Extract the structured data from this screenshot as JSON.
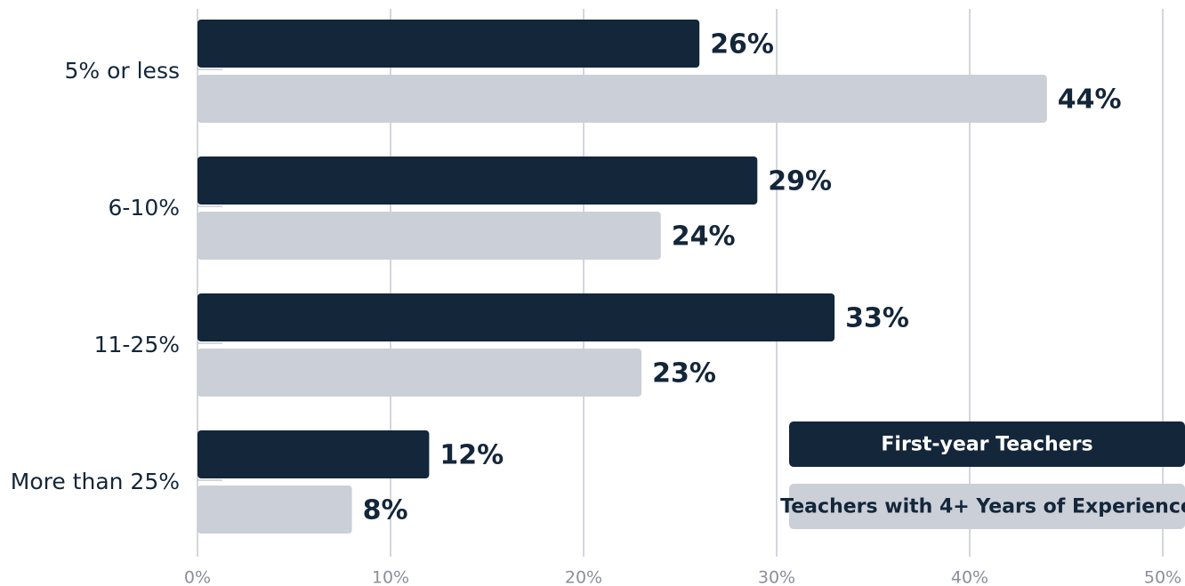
{
  "chart_data": {
    "type": "bar",
    "orientation": "horizontal",
    "categories": [
      "5% or less",
      "6-10%",
      "11-25%",
      "More than 25%"
    ],
    "series": [
      {
        "name": "First-year Teachers",
        "color": "#13263a",
        "values": [
          26,
          29,
          33,
          12
        ],
        "value_labels": [
          "26%",
          "29%",
          "33%",
          "12%"
        ]
      },
      {
        "name": "Teachers with 4+ Years of Experience",
        "color": "#cbcfd7",
        "values": [
          44,
          24,
          23,
          8
        ],
        "value_labels": [
          "44%",
          "24%",
          "23%",
          "8%"
        ]
      }
    ],
    "xlim": [
      0,
      50
    ],
    "xticks": [
      {
        "value": 0,
        "label": "0%"
      },
      {
        "value": 10,
        "label": "10%"
      },
      {
        "value": 20,
        "label": "20%"
      },
      {
        "value": 30,
        "label": "30%"
      },
      {
        "value": 40,
        "label": "40%"
      },
      {
        "value": 50,
        "label": "50%"
      }
    ],
    "grid": true,
    "legend": "lower right"
  }
}
